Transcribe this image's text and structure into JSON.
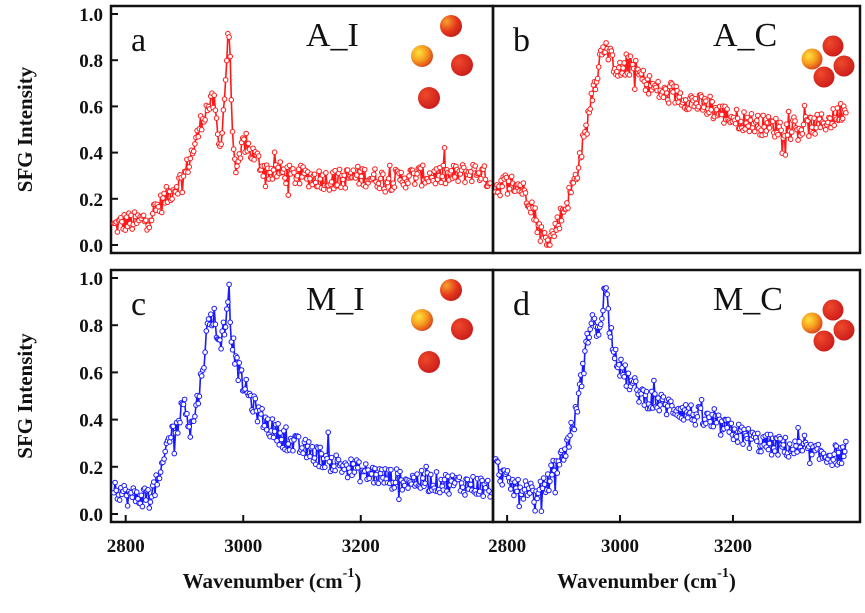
{
  "chart_data": [
    {
      "type": "line",
      "panel": "a",
      "label": "A_I",
      "color": "#ff1a1a",
      "icon": "four-scattered-spheres-icon",
      "ylabel": "SFG Intensity",
      "ylim": [
        0.0,
        1.0
      ],
      "yticks": [
        "0.0",
        "0.2",
        "0.4",
        "0.6",
        "0.8",
        "1.0"
      ],
      "xlim": [
        2775,
        3425
      ],
      "xticks": [],
      "xlabel": "",
      "series": [
        {
          "x": [
            2780,
            2800,
            2820,
            2840,
            2860,
            2880,
            2900,
            2910,
            2920,
            2930,
            2940,
            2950,
            2960,
            2970,
            2975,
            2980,
            2985,
            2990,
            3000,
            3020,
            3040,
            3060,
            3080,
            3100,
            3150,
            3200,
            3250,
            3300,
            3350,
            3400,
            3420
          ],
          "y": [
            0.08,
            0.1,
            0.1,
            0.12,
            0.18,
            0.24,
            0.3,
            0.38,
            0.45,
            0.55,
            0.6,
            0.62,
            0.4,
            0.7,
            0.98,
            0.62,
            0.35,
            0.3,
            0.45,
            0.38,
            0.32,
            0.32,
            0.3,
            0.3,
            0.28,
            0.3,
            0.28,
            0.3,
            0.3,
            0.32,
            0.28
          ]
        }
      ]
    },
    {
      "type": "line",
      "panel": "b",
      "label": "A_C",
      "color": "#ff1a1a",
      "icon": "four-clustered-spheres-icon",
      "ylim": [
        0.0,
        1.0
      ],
      "yticks": [],
      "xlim": [
        2775,
        3425
      ],
      "xticks": [],
      "xlabel": "",
      "series": [
        {
          "x": [
            2780,
            2800,
            2820,
            2840,
            2850,
            2860,
            2870,
            2880,
            2890,
            2900,
            2920,
            2940,
            2950,
            2960,
            2970,
            2980,
            3000,
            3020,
            3040,
            3060,
            3080,
            3100,
            3150,
            3200,
            3250,
            3300,
            3350,
            3380,
            3400
          ],
          "y": [
            0.25,
            0.27,
            0.26,
            0.2,
            0.12,
            0.05,
            0.02,
            0.04,
            0.1,
            0.15,
            0.28,
            0.5,
            0.65,
            0.75,
            0.88,
            0.82,
            0.75,
            0.78,
            0.72,
            0.68,
            0.65,
            0.65,
            0.6,
            0.55,
            0.52,
            0.5,
            0.52,
            0.55,
            0.6
          ]
        }
      ]
    },
    {
      "type": "line",
      "panel": "c",
      "label": "M_I",
      "color": "#1a1aff",
      "icon": "four-scattered-spheres-icon",
      "ylabel": "SFG Intensity",
      "ylim": [
        0.0,
        1.0
      ],
      "yticks": [
        "0.0",
        "0.2",
        "0.4",
        "0.6",
        "0.8",
        "1.0"
      ],
      "xlim": [
        2775,
        3425
      ],
      "xticks": [
        "2800",
        "3000",
        "3200"
      ],
      "xlabel": "Wavenumber (cm⁻¹)",
      "series": [
        {
          "x": [
            2780,
            2800,
            2820,
            2840,
            2860,
            2870,
            2880,
            2890,
            2900,
            2910,
            2920,
            2930,
            2940,
            2950,
            2960,
            2970,
            2975,
            2980,
            2990,
            3000,
            3020,
            3040,
            3060,
            3080,
            3100,
            3150,
            3200,
            3250,
            3300,
            3350,
            3400,
            3420
          ],
          "y": [
            0.12,
            0.08,
            0.07,
            0.08,
            0.15,
            0.3,
            0.35,
            0.38,
            0.5,
            0.35,
            0.45,
            0.6,
            0.8,
            0.85,
            0.7,
            0.8,
            0.98,
            0.75,
            0.62,
            0.55,
            0.45,
            0.38,
            0.34,
            0.3,
            0.28,
            0.22,
            0.18,
            0.15,
            0.14,
            0.13,
            0.12,
            0.11
          ]
        }
      ]
    },
    {
      "type": "line",
      "panel": "d",
      "label": "M_C",
      "color": "#1a1aff",
      "icon": "four-clustered-spheres-icon",
      "ylim": [
        0.0,
        1.0
      ],
      "yticks": [],
      "xlim": [
        2775,
        3425
      ],
      "xticks": [
        "2800",
        "3000",
        "3200"
      ],
      "xlabel": "Wavenumber (cm⁻¹)",
      "series": [
        {
          "x": [
            2780,
            2800,
            2820,
            2840,
            2850,
            2860,
            2870,
            2880,
            2900,
            2920,
            2930,
            2940,
            2950,
            2960,
            2970,
            2975,
            2980,
            2990,
            3000,
            3020,
            3040,
            3060,
            3080,
            3100,
            3150,
            3200,
            3250,
            3300,
            3350,
            3400
          ],
          "y": [
            0.2,
            0.14,
            0.1,
            0.12,
            0.05,
            0.1,
            0.12,
            0.18,
            0.25,
            0.4,
            0.55,
            0.7,
            0.85,
            0.75,
            0.9,
            0.98,
            0.82,
            0.7,
            0.62,
            0.55,
            0.5,
            0.48,
            0.46,
            0.45,
            0.4,
            0.35,
            0.3,
            0.28,
            0.25,
            0.25
          ]
        }
      ]
    }
  ]
}
